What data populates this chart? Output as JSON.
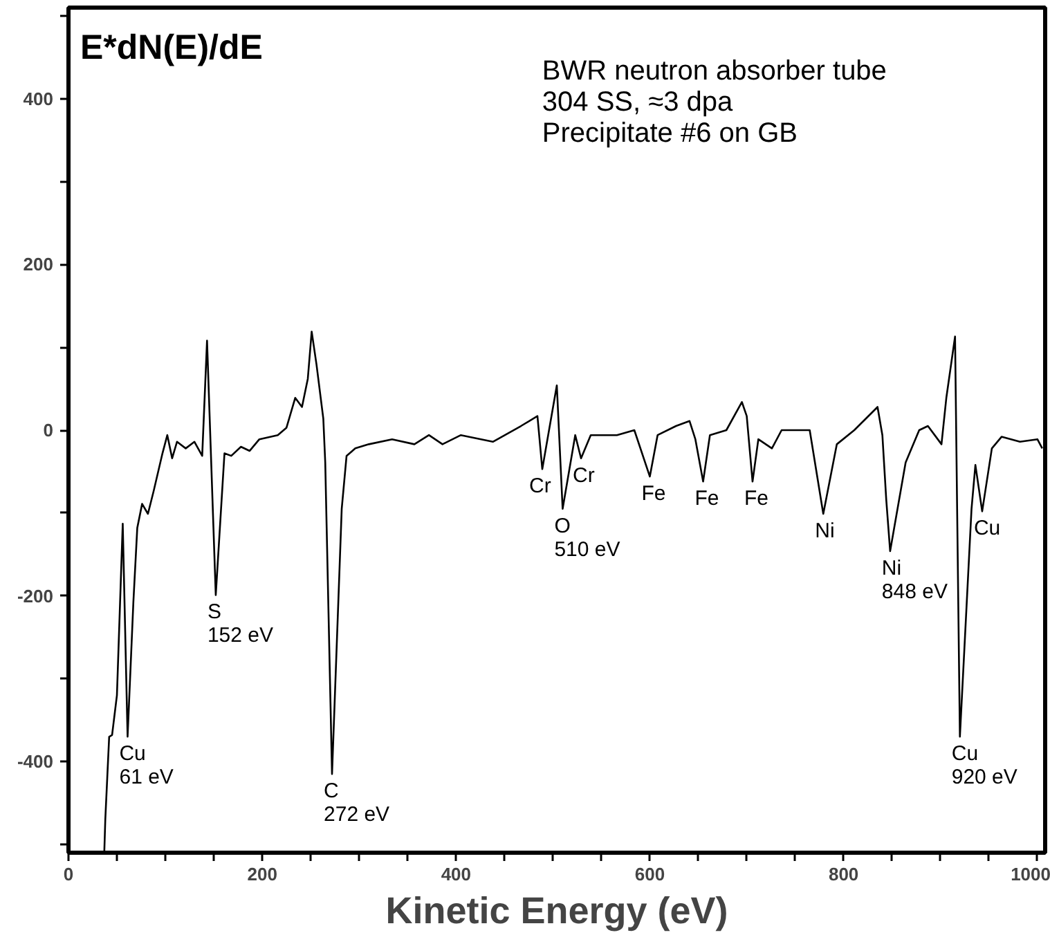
{
  "chart_data": {
    "type": "line",
    "ylabel": "E*dN(E)/dE",
    "xlabel": "Kinetic Energy (eV)",
    "x": [
      37,
      38,
      40,
      42,
      45,
      50,
      56,
      61,
      67,
      71,
      76,
      82,
      88,
      97,
      102,
      107,
      112,
      121,
      130,
      138,
      143,
      152,
      161,
      168,
      178,
      187,
      197,
      216,
      225,
      234,
      241,
      247,
      251,
      256,
      263,
      265,
      272,
      282,
      287,
      296,
      310,
      334,
      357,
      372,
      386,
      405,
      438,
      467,
      484,
      489,
      504,
      510,
      523,
      529,
      539,
      566,
      584,
      600,
      608,
      627,
      641,
      647,
      655,
      662,
      679,
      695,
      700,
      706,
      712,
      726,
      736,
      765,
      779,
      793,
      811,
      835,
      840,
      844,
      848,
      864,
      878,
      887,
      901,
      906,
      915,
      920,
      932,
      936,
      943,
      953,
      963,
      982,
      1000,
      1005
    ],
    "values": [
      -508,
      -470,
      -420,
      -370,
      -368,
      -320,
      -113,
      -370,
      -207,
      -118,
      -89,
      -101,
      -73,
      -28,
      -6,
      -34,
      -14,
      -22,
      -14,
      -31,
      108,
      -199,
      -28,
      -31,
      -20,
      -25,
      -11,
      -6,
      3,
      39,
      28,
      62,
      119,
      79,
      14,
      -39,
      -415,
      -95,
      -31,
      -22,
      -17,
      -11,
      -17,
      -6,
      -17,
      -6,
      -14,
      5,
      17,
      -47,
      54,
      -95,
      -6,
      -34,
      -6,
      -6,
      0,
      -56,
      -6,
      5,
      11,
      -11,
      -62,
      -6,
      0,
      34,
      17,
      -62,
      -11,
      -22,
      0,
      0,
      -101,
      -17,
      0,
      28,
      -6,
      -84,
      -146,
      -39,
      0,
      5,
      -17,
      39,
      113,
      -370,
      -95,
      -42,
      -98,
      -22,
      -8,
      -14,
      -11,
      -22
    ],
    "color": "#000000",
    "line_style": "solid",
    "marker": "none",
    "grid": false,
    "legend": false,
    "xlim": [
      0,
      1008
    ],
    "ylim": [
      -510,
      510
    ],
    "xticks": [
      0,
      {
        "value": 50,
        "label": null
      },
      {
        "value": 100,
        "label": null
      },
      {
        "value": 150,
        "label": null
      },
      200,
      {
        "value": 250,
        "label": null
      },
      {
        "value": 300,
        "label": null
      },
      {
        "value": 350,
        "label": null
      },
      400,
      {
        "value": 450,
        "label": null
      },
      {
        "value": 500,
        "label": null
      },
      {
        "value": 550,
        "label": null
      },
      600,
      {
        "value": 650,
        "label": null
      },
      {
        "value": 700,
        "label": null
      },
      {
        "value": 750,
        "label": null
      },
      800,
      {
        "value": 850,
        "label": null
      },
      {
        "value": 900,
        "label": null
      },
      {
        "value": 950,
        "label": null
      },
      1000
    ],
    "yticks": [
      {
        "value": -500,
        "label": null
      },
      -400,
      {
        "value": -300,
        "label": null
      },
      -200,
      {
        "value": -100,
        "label": null
      },
      0,
      {
        "value": 100,
        "label": null
      },
      200,
      {
        "value": 300,
        "label": null
      },
      400,
      {
        "value": 500,
        "label": null
      }
    ],
    "annotations": [
      "BWR neutron absorber tube",
      "304 SS, ≈3 dpa",
      "Precipitate #6 on GB",
      {
        "text": "Cu\n61 eV",
        "x": 61,
        "y": -370
      },
      {
        "text": "S\n152 eV",
        "x": 152,
        "y": -199
      },
      {
        "text": "C\n272 eV",
        "x": 272,
        "y": -415
      },
      {
        "text": "Cr",
        "x": 484,
        "y": -47
      },
      {
        "text": "O\n510 eV",
        "x": 510,
        "y": -95
      },
      {
        "text": "Cr",
        "x": 529,
        "y": -34
      },
      {
        "text": "Fe",
        "x": 600,
        "y": -56
      },
      {
        "text": "Fe",
        "x": 655,
        "y": -62
      },
      {
        "text": "Fe",
        "x": 706,
        "y": -62
      },
      {
        "text": "Ni",
        "x": 779,
        "y": -101
      },
      {
        "text": "Ni\n848 eV",
        "x": 848,
        "y": -146
      },
      {
        "text": "Cu\n920 eV",
        "x": 920,
        "y": -370
      },
      {
        "text": "Cu",
        "x": 943,
        "y": -98
      }
    ]
  }
}
